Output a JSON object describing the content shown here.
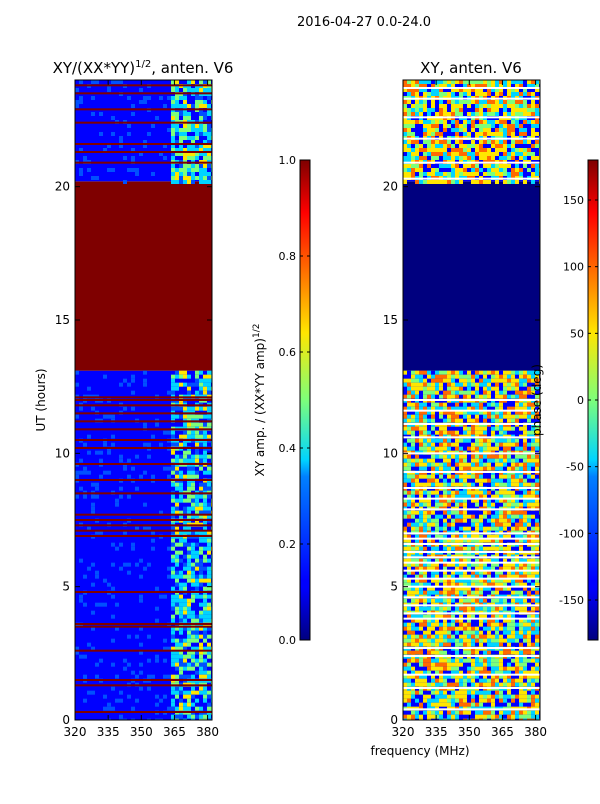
{
  "figure": {
    "suptitle": "2016-04-27 0.0-24.0",
    "shared_xlabel": "frequency (MHz)"
  },
  "colors": {
    "dark_red": "#7f0000",
    "dark_blue": "#00007f",
    "blue": "#0000ff",
    "mid_blue": "#0050ff",
    "cyan": "#00d4ff",
    "green": "#7dff7a",
    "yellow": "#ffe600",
    "orange": "#ff6a00",
    "red": "#ff0000"
  },
  "chart_data": [
    {
      "type": "heatmap",
      "title_main": "XY/(XX*YY)",
      "title_sup": "1/2",
      "title_tail": ", anten. V6",
      "ylabel": "UT (hours)",
      "xlabel": "",
      "xlim": [
        320,
        382
      ],
      "ylim": [
        0,
        24
      ],
      "xticks": [
        "320",
        "335",
        "350",
        "365",
        "380"
      ],
      "xtick_values": [
        320,
        335,
        350,
        365,
        380
      ],
      "yticks": [
        "0",
        "5",
        "10",
        "15",
        "20"
      ],
      "ytick_values": [
        0,
        5,
        10,
        15,
        20
      ],
      "colorbar": {
        "label_main": "XY amp. / (XX*YY amp)",
        "label_sup": "1/2",
        "ticks": [
          "0.0",
          "0.2",
          "0.4",
          "0.6",
          "0.8",
          "1.0"
        ],
        "tick_values": [
          0.0,
          0.2,
          0.4,
          0.6,
          0.8,
          1.0
        ],
        "range": [
          0.0,
          1.0
        ],
        "colormap": "jet"
      },
      "bands": [
        {
          "from": 0.0,
          "to": 13.1,
          "color": "blue",
          "note": "mostly low amplitude, high variance above 362 MHz"
        },
        {
          "from": 13.1,
          "to": 20.2,
          "color": "dark_red",
          "value": 1.0
        },
        {
          "from": 20.2,
          "to": 24.0,
          "color": "blue",
          "note": "mostly low amplitude, high variance above 362 MHz"
        }
      ],
      "red_rows_hours": [
        0.3,
        1.3,
        1.5,
        2.6,
        3.5,
        3.6,
        4.8,
        6.9,
        7.1,
        7.3,
        7.5,
        7.7,
        8.5,
        9.0,
        9.6,
        10.2,
        10.5,
        10.9,
        11.2,
        11.5,
        11.8,
        12.0,
        12.1,
        20.9,
        21.3,
        21.6,
        22.4,
        22.9,
        23.5,
        23.8
      ],
      "active_channels_mhz": [
        362,
        382
      ]
    },
    {
      "type": "heatmap",
      "title_main": "XY, anten. V6",
      "ylabel": "",
      "xlabel": "frequency (MHz)",
      "xlim": [
        320,
        382
      ],
      "ylim": [
        0,
        24
      ],
      "xticks": [
        "320",
        "335",
        "350",
        "365",
        "380"
      ],
      "xtick_values": [
        320,
        335,
        350,
        365,
        380
      ],
      "yticks": [
        "0",
        "5",
        "10",
        "15",
        "20"
      ],
      "ytick_values": [
        0,
        5,
        10,
        15,
        20
      ],
      "colorbar": {
        "label": "phase (deg)",
        "ticks": [
          "-150",
          "-100",
          "-50",
          "0",
          "50",
          "100",
          "150"
        ],
        "tick_values": [
          -150,
          -100,
          -50,
          0,
          50,
          100,
          150
        ],
        "range": [
          -180,
          180
        ],
        "colormap": "jet"
      },
      "bands": [
        {
          "from": 0.0,
          "to": 13.1,
          "color": "mixed",
          "note": "mixed phase, red streaks near 350 MHz, yellow/orange above 362 MHz"
        },
        {
          "from": 13.1,
          "to": 20.2,
          "color": "dark_blue",
          "value": -180
        },
        {
          "from": 20.2,
          "to": 24.0,
          "color": "mixed",
          "note": "mixed phase"
        }
      ],
      "white_rows_hours": [
        0.4,
        1.2,
        1.7,
        2.4,
        2.7,
        3.8,
        4.0,
        4.3,
        4.6,
        5.0,
        5.3,
        5.6,
        5.9,
        6.1,
        6.3,
        6.6,
        6.8,
        7.0,
        7.9,
        8.3,
        8.7,
        9.3,
        10.0,
        10.6,
        11.1,
        11.6,
        12.0,
        20.3,
        20.9,
        21.8,
        22.6,
        23.3,
        23.7
      ],
      "active_channels_mhz": [
        320,
        382
      ]
    }
  ]
}
